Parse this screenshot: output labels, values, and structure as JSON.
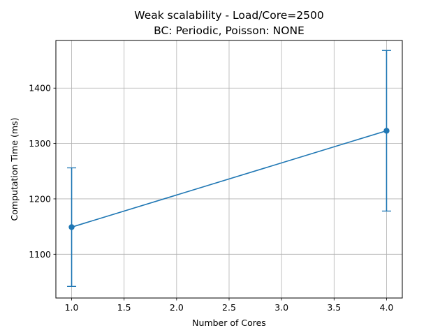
{
  "chart_data": {
    "type": "line",
    "title": "Weak scalability - Load/Core=2500",
    "subtitle": "BC: Periodic, Poisson: NONE",
    "xlabel": "Number of Cores",
    "ylabel": "Computation Time (ms)",
    "xlim": [
      0.85,
      4.15
    ],
    "ylim": [
      1021,
      1486
    ],
    "xticks": [
      1.0,
      1.5,
      2.0,
      2.5,
      3.0,
      3.5,
      4.0
    ],
    "xtick_labels": [
      "1.0",
      "1.5",
      "2.0",
      "2.5",
      "3.0",
      "3.5",
      "4.0"
    ],
    "yticks": [
      1100,
      1200,
      1300,
      1400
    ],
    "ytick_labels": [
      "1100",
      "1200",
      "1300",
      "1400"
    ],
    "grid": true,
    "series": [
      {
        "name": "Computation Time",
        "color": "#1f77b4",
        "x": [
          1,
          4
        ],
        "y": [
          1149,
          1323
        ],
        "error": [
          107,
          145
        ]
      }
    ]
  }
}
